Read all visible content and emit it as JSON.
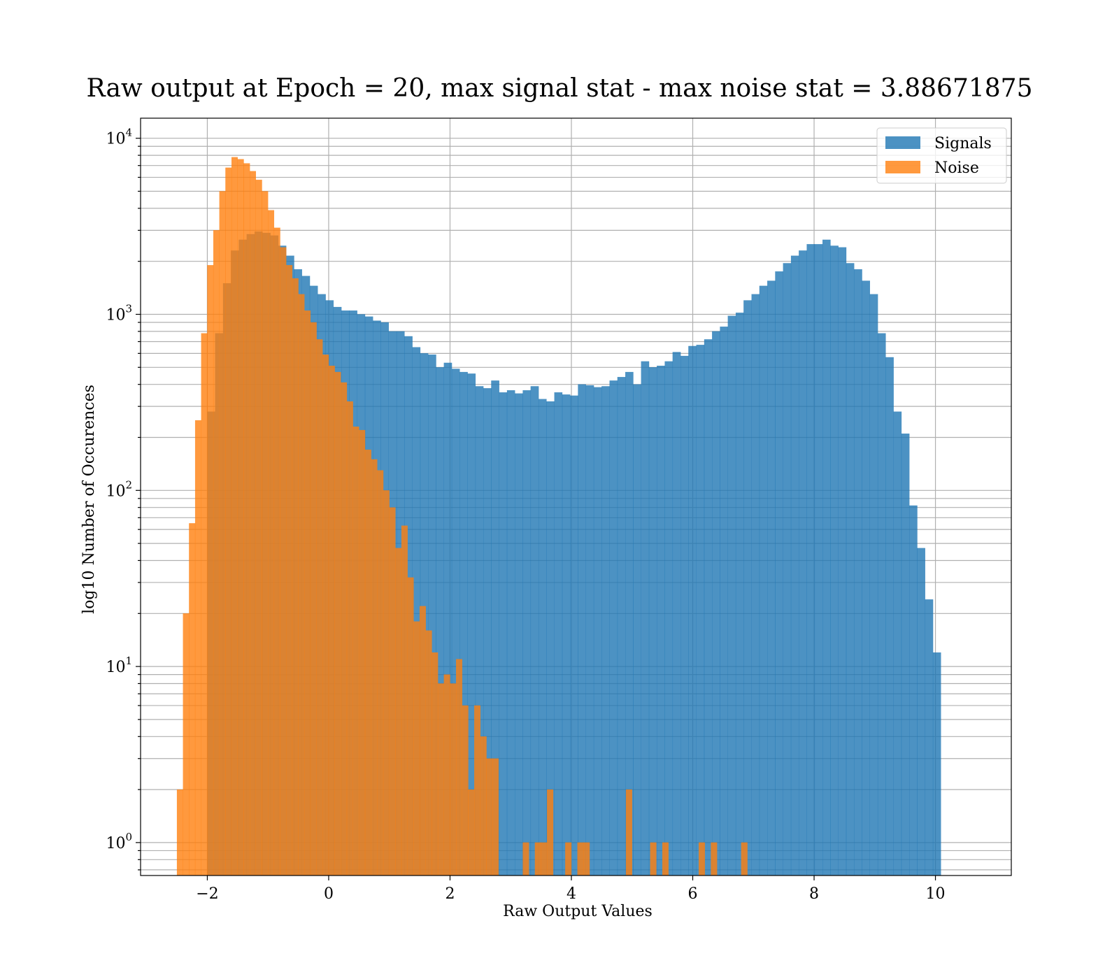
{
  "chart_data": {
    "type": "bar",
    "title": "Raw output at Epoch = 20, max signal stat - max noise stat = 3.88671875",
    "xlabel": "Raw Output Values",
    "ylabel": "log10 Number of Occurences",
    "xlim": [
      -3.1,
      11.25
    ],
    "ylim": [
      0.65,
      13000
    ],
    "yscale": "log",
    "grid": "both (major and minor)",
    "legend_position": "top-right",
    "x_ticks": [
      {
        "value": -2,
        "label": "−2"
      },
      {
        "value": 0,
        "label": "0"
      },
      {
        "value": 2,
        "label": "2"
      },
      {
        "value": 4,
        "label": "4"
      },
      {
        "value": 6,
        "label": "6"
      },
      {
        "value": 8,
        "label": "8"
      },
      {
        "value": 10,
        "label": "10"
      }
    ],
    "y_ticks": [
      {
        "value": 1,
        "base": "10",
        "exp": "0"
      },
      {
        "value": 10,
        "base": "10",
        "exp": "1"
      },
      {
        "value": 100,
        "base": "10",
        "exp": "2"
      },
      {
        "value": 1000,
        "base": "10",
        "exp": "3"
      },
      {
        "value": 10000,
        "base": "10",
        "exp": "4"
      }
    ],
    "series": [
      {
        "name": "Signals",
        "color": "#1f77b4",
        "bin_start": -2.0,
        "bin_width": 0.13,
        "values": [
          280,
          780,
          1500,
          2300,
          2650,
          2850,
          2950,
          2900,
          2800,
          2450,
          2150,
          1800,
          1650,
          1450,
          1300,
          1200,
          1100,
          1050,
          1050,
          1000,
          970,
          920,
          900,
          800,
          800,
          750,
          650,
          600,
          590,
          500,
          530,
          490,
          470,
          460,
          390,
          380,
          420,
          360,
          370,
          355,
          370,
          390,
          330,
          320,
          360,
          350,
          345,
          400,
          395,
          385,
          390,
          420,
          440,
          470,
          400,
          540,
          500,
          510,
          540,
          610,
          580,
          660,
          670,
          720,
          800,
          850,
          980,
          1020,
          1200,
          1300,
          1450,
          1550,
          1750,
          1950,
          2150,
          2300,
          2500,
          2500,
          2650,
          2450,
          2400,
          1950,
          1800,
          1550,
          1300,
          780,
          570,
          280,
          210,
          82,
          47,
          24,
          12
        ]
      },
      {
        "name": "Noise",
        "color": "#ff7f0e",
        "bin_start": -2.5,
        "bin_width": 0.1,
        "values": [
          2,
          20,
          65,
          250,
          780,
          1900,
          3000,
          5000,
          6800,
          7800,
          7600,
          7200,
          6500,
          5800,
          5000,
          3900,
          3100,
          2400,
          1900,
          1600,
          1300,
          1050,
          900,
          720,
          590,
          510,
          470,
          410,
          320,
          230,
          220,
          170,
          150,
          130,
          100,
          80,
          47,
          63,
          32,
          18,
          22,
          16,
          12,
          8,
          9,
          8,
          11,
          6,
          2,
          6,
          4,
          3,
          3,
          0,
          0,
          0,
          0,
          1,
          0,
          1,
          1,
          2,
          0,
          0,
          1,
          0,
          1,
          1,
          0,
          0,
          0,
          0,
          0,
          0,
          2,
          0,
          0,
          0,
          1,
          0,
          1,
          0,
          0,
          0,
          0,
          0,
          1,
          0,
          1,
          0,
          0,
          0,
          0,
          1,
          0,
          0,
          0,
          0,
          0,
          0,
          0,
          0,
          0,
          0,
          0,
          0,
          0,
          0,
          0,
          0,
          0
        ]
      }
    ]
  }
}
